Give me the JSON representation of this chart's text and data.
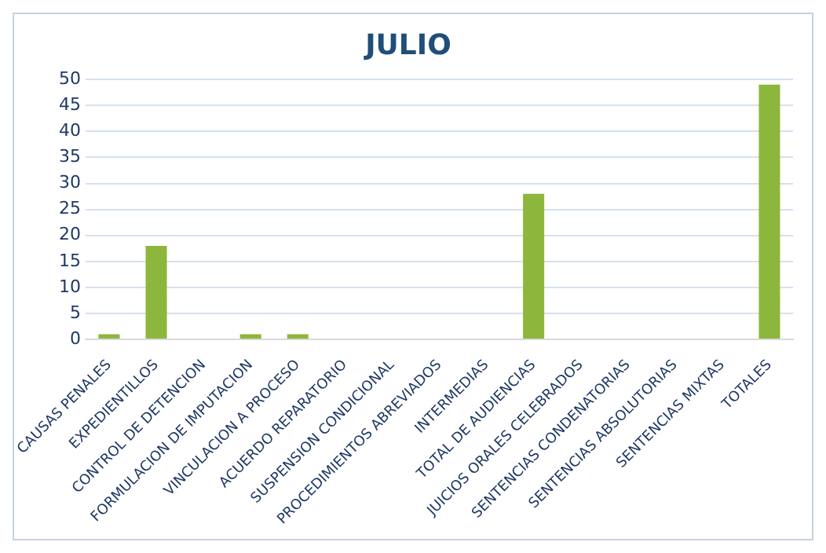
{
  "chart_data": {
    "type": "bar",
    "title": "JULIO",
    "categories": [
      "CAUSAS PENALES",
      "EXPEDIENTILLOS",
      "CONTROL DE DETENCION",
      "FORMULACION DE IMPUTACION",
      "VINCULACION A PROCESO",
      "ACUERDO REPARATORIO",
      "SUSPENSION CONDICIONAL",
      "PROCEDIMIENTOS ABREVIADOS",
      "INTERMEDIAS",
      "TOTAL DE AUDIENCIAS",
      "JUICIOS ORALES CELEBRADOS",
      "SENTENCIAS CONDENATORIAS",
      "SENTENCIAS ABSOLUTORIAS",
      "SENTENCIAS MIXTAS",
      "TOTALES"
    ],
    "values": [
      1,
      18,
      0,
      1,
      1,
      0,
      0,
      0,
      0,
      28,
      0,
      0,
      0,
      0,
      49
    ],
    "color": "#8db63c",
    "ylim": [
      0,
      50
    ],
    "yticks": [
      0,
      5,
      10,
      15,
      20,
      25,
      30,
      35,
      40,
      45,
      50
    ],
    "grid": "y",
    "legend": false
  }
}
